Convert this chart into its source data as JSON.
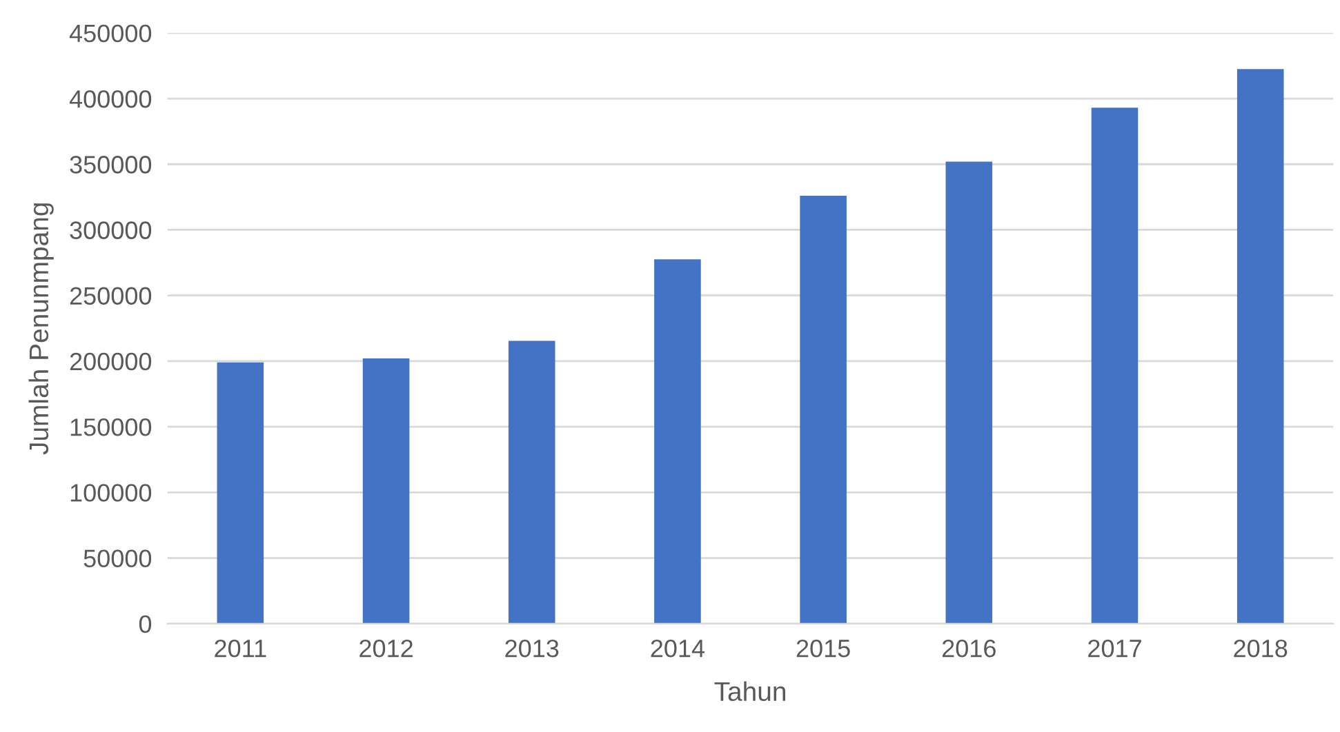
{
  "chart_data": {
    "type": "bar",
    "xlabel": "Tahun",
    "ylabel": "Jumlah Penunmpang",
    "categories": [
      "2011",
      "2012",
      "2013",
      "2014",
      "2015",
      "2016",
      "2017",
      "2018"
    ],
    "values": [
      199000,
      202000,
      215500,
      277500,
      326000,
      352000,
      393000,
      422500
    ],
    "color": "#4472c4",
    "ylim": [
      0,
      450000
    ],
    "yticks": [
      0,
      50000,
      100000,
      150000,
      200000,
      250000,
      300000,
      350000,
      400000,
      450000
    ],
    "grid": "y"
  }
}
